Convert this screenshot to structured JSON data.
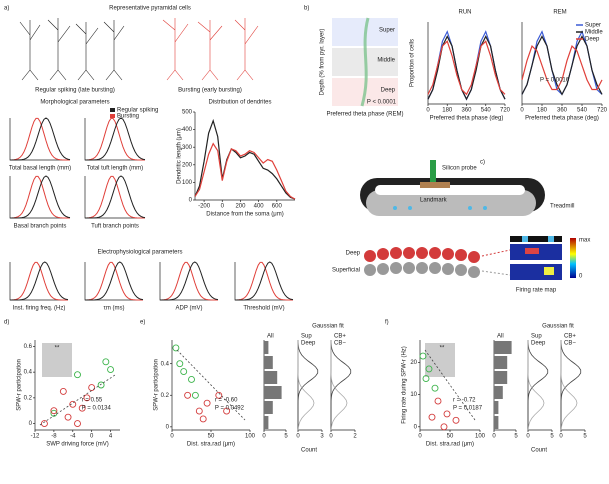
{
  "panel_a": {
    "label": "a)",
    "title": "Representative pyramidal cells",
    "cell_types": [
      "Regular spiking (late bursting)",
      "Bursting (early bursting)"
    ],
    "morph_title": "Morphological parameters",
    "legend": [
      {
        "name": "Regular spiking",
        "color": "#222222"
      },
      {
        "name": "Bursting",
        "color": "#e0403a"
      }
    ],
    "morph_axes": [
      "Total basal length (mm)",
      "Total tuft length (mm)",
      "Basal branch points",
      "Tuft branch points"
    ],
    "ephys_title": "Electrophysiological parameters",
    "ephys_axes": [
      "Inst. firing freq. (Hz)",
      "τm (ms)",
      "ADP (mV)",
      "Threshold (mV)"
    ]
  },
  "dendrites": {
    "type": "line",
    "title": "Distribution of dendrites",
    "xlabel": "Distance from the soma (μm)",
    "ylabel": "Dendritic length (μm)",
    "xlim": [
      -300,
      800
    ],
    "ylim": [
      0,
      500
    ],
    "xticks": [
      -200,
      0,
      200,
      400,
      600
    ],
    "yticks": [
      0,
      100,
      200,
      300,
      400,
      500
    ],
    "x": [
      -300,
      -250,
      -200,
      -150,
      -100,
      -50,
      0,
      50,
      100,
      150,
      200,
      250,
      300,
      350,
      400,
      450,
      500,
      550,
      600,
      650,
      700,
      750,
      800
    ],
    "series": [
      {
        "color": "#222222",
        "values": [
          20,
          80,
          220,
          380,
          450,
          360,
          120,
          230,
          290,
          270,
          240,
          250,
          270,
          260,
          220,
          180,
          170,
          150,
          120,
          80,
          40,
          15,
          5
        ]
      },
      {
        "color": "#e0403a",
        "values": [
          20,
          60,
          160,
          260,
          320,
          280,
          110,
          220,
          290,
          280,
          250,
          260,
          280,
          270,
          240,
          210,
          230,
          220,
          170,
          110,
          50,
          20,
          5
        ]
      }
    ]
  },
  "panel_b": {
    "label": "b)",
    "ylabel": "Depth (% from pyr. layer)",
    "xlabel": "Preferred theta phase (REM)",
    "layers": [
      {
        "name": "Super",
        "color": "#3b5bd6"
      },
      {
        "name": "Middle",
        "color": "#222222"
      },
      {
        "name": "Deep",
        "color": "#e0403a"
      }
    ],
    "stat": "P < 0.0001"
  },
  "run": {
    "type": "line",
    "title": "RUN",
    "xlabel": "Preferred theta phase (deg)",
    "ylabel": "Proportion of cells",
    "xlim": [
      0,
      720
    ],
    "ylim": [
      0,
      0.17
    ],
    "xticks": [
      0,
      180,
      360,
      540,
      720
    ],
    "x": [
      0,
      45,
      90,
      135,
      180,
      225,
      270,
      315,
      360,
      405,
      450,
      495,
      540,
      585,
      630,
      675,
      720
    ],
    "series": [
      {
        "color": "#3b5bd6",
        "values": [
          0.01,
          0.03,
          0.08,
          0.13,
          0.15,
          0.12,
          0.07,
          0.03,
          0.01,
          0.03,
          0.08,
          0.13,
          0.15,
          0.12,
          0.07,
          0.03,
          0.01
        ]
      },
      {
        "color": "#222222",
        "values": [
          0.01,
          0.03,
          0.07,
          0.12,
          0.14,
          0.12,
          0.07,
          0.03,
          0.01,
          0.03,
          0.07,
          0.12,
          0.14,
          0.12,
          0.07,
          0.03,
          0.01
        ]
      },
      {
        "color": "#e0403a",
        "values": [
          0.02,
          0.04,
          0.08,
          0.12,
          0.13,
          0.1,
          0.06,
          0.03,
          0.02,
          0.04,
          0.08,
          0.12,
          0.13,
          0.1,
          0.06,
          0.03,
          0.02
        ]
      }
    ]
  },
  "rem": {
    "type": "line",
    "title": "REM",
    "xlabel": "Preferred theta phase (deg)",
    "stat": "P = 0.0016",
    "xlim": [
      0,
      720
    ],
    "ylim": [
      0,
      0.17
    ],
    "xticks": [
      0,
      180,
      360,
      540,
      720
    ],
    "x": [
      0,
      45,
      90,
      135,
      180,
      225,
      270,
      315,
      360,
      405,
      450,
      495,
      540,
      585,
      630,
      675,
      720
    ],
    "series": [
      {
        "name": "Super",
        "color": "#3b5bd6",
        "values": [
          0.02,
          0.04,
          0.08,
          0.13,
          0.15,
          0.12,
          0.07,
          0.03,
          0.02,
          0.04,
          0.08,
          0.13,
          0.15,
          0.12,
          0.07,
          0.03,
          0.02
        ]
      },
      {
        "name": "Middle",
        "color": "#222222",
        "values": [
          0.02,
          0.04,
          0.08,
          0.12,
          0.14,
          0.12,
          0.07,
          0.04,
          0.02,
          0.04,
          0.08,
          0.12,
          0.14,
          0.12,
          0.07,
          0.04,
          0.02
        ]
      },
      {
        "name": "Deep",
        "color": "#e0403a",
        "values": [
          0.05,
          0.09,
          0.12,
          0.11,
          0.08,
          0.05,
          0.03,
          0.03,
          0.05,
          0.09,
          0.12,
          0.11,
          0.08,
          0.05,
          0.03,
          0.03,
          0.05
        ]
      }
    ]
  },
  "panel_c": {
    "label": "c)",
    "probe": "Silicon probe",
    "landmark": "Landmark",
    "treadmill": "Treadmill",
    "deep": "Deep",
    "superficial": "Superficial",
    "map_title": "Firing rate map",
    "scale": [
      "max",
      "0"
    ]
  },
  "d": {
    "type": "scatter",
    "label": "d)",
    "xlabel": "SWP driving force (mV)",
    "ylabel": "SPW-r participation",
    "xlim": [
      -12,
      6
    ],
    "ylim": [
      -0.05,
      0.65
    ],
    "xticks": [
      -12,
      -8,
      -4,
      0,
      4
    ],
    "yticks": [
      0,
      0.2,
      0.4,
      0.6
    ],
    "stats": [
      "r = 0.55",
      "P = 0.0134"
    ],
    "inset": "**",
    "series": [
      {
        "color": "#3cb44b",
        "x": [
          -8,
          -3,
          3,
          4,
          2
        ],
        "values": [
          0.08,
          0.38,
          0.48,
          0.42,
          0.3
        ]
      },
      {
        "color": "#d33b3b",
        "x": [
          -10,
          -8,
          -6,
          -4,
          -2,
          -1,
          0,
          -5,
          -3
        ],
        "values": [
          0,
          0.1,
          0.25,
          0.15,
          0.12,
          0.2,
          0.28,
          0.05,
          0
        ]
      }
    ]
  },
  "e": {
    "type": "scatter",
    "label": "e)",
    "xlabel": "Dist. stra.rad (μm)",
    "ylabel": "SPW-r participation",
    "xlim": [
      0,
      100
    ],
    "ylim": [
      -0.02,
      0.55
    ],
    "xticks": [
      0,
      50,
      100
    ],
    "yticks": [
      0,
      0.2,
      0.4
    ],
    "stats": [
      "r = -0.60",
      "P = 0.0492"
    ],
    "series": [
      {
        "color": "#3cb44b",
        "x": [
          5,
          15,
          25,
          30,
          10
        ],
        "values": [
          0.5,
          0.35,
          0.3,
          0.2,
          0.4
        ]
      },
      {
        "color": "#d33b3b",
        "x": [
          20,
          35,
          45,
          60,
          70,
          40
        ],
        "values": [
          0.2,
          0.1,
          0.15,
          0.2,
          0.1,
          0.05
        ]
      }
    ],
    "hist": {
      "title": "All",
      "xlim": [
        0,
        5
      ],
      "xticks": [
        0,
        5
      ],
      "color": "#777777",
      "values": [
        1,
        2,
        3,
        4,
        2,
        1
      ]
    },
    "fit_title": "Gaussian fit",
    "fit_labels": [
      [
        "Sup",
        "Deep"
      ],
      [
        "CB+",
        "CB−"
      ]
    ],
    "fit_xticks": [
      [
        0,
        3
      ],
      [
        0,
        2
      ]
    ],
    "count": "Count"
  },
  "f": {
    "type": "scatter",
    "label": "f)",
    "xlabel": "Dist. stra.rad (μm)",
    "ylabel": "Firing rate during SPW-r (Hz)",
    "xlim": [
      0,
      100
    ],
    "ylim": [
      -1,
      27
    ],
    "xticks": [
      0,
      50,
      100
    ],
    "yticks": [
      0,
      10,
      20
    ],
    "stats": [
      "r = -0.72",
      "P = 0.0187"
    ],
    "inset": "**",
    "series": [
      {
        "color": "#3cb44b",
        "x": [
          5,
          10,
          15,
          25
        ],
        "values": [
          22,
          15,
          18,
          12
        ]
      },
      {
        "color": "#d33b3b",
        "x": [
          20,
          30,
          45,
          60,
          40
        ],
        "values": [
          3,
          8,
          4,
          2,
          0
        ]
      }
    ],
    "hist": {
      "title": "All",
      "xlim": [
        0,
        5
      ],
      "xticks": [
        0,
        5
      ],
      "color": "#777777",
      "values": [
        4,
        3,
        3,
        2,
        1,
        1
      ]
    },
    "fit_title": "Gaussian fit",
    "fit_labels": [
      [
        "Sup",
        "Deep"
      ],
      [
        "CB+",
        "CB−"
      ]
    ],
    "fit_xticks": [
      [
        0,
        5
      ],
      [
        0,
        5
      ]
    ],
    "count": "Count"
  }
}
